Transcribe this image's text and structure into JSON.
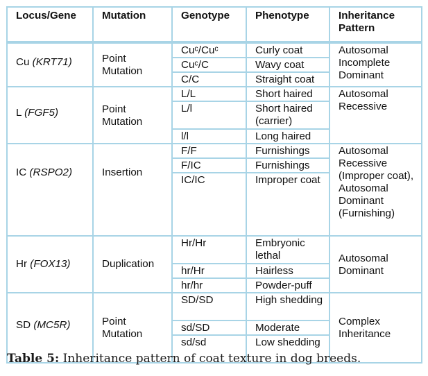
{
  "headers": {
    "locus": "Locus/Gene",
    "mutation": "Mutation",
    "genotype": "Genotype",
    "phenotype": "Phenotype",
    "inheritance": "Inheritance Pattern"
  },
  "groups": [
    {
      "locus": "Cu",
      "gene": "(KRT71)",
      "mutation": "Point Mutation",
      "inheritance": "Autosomal Incomplete Dominant",
      "rows": [
        {
          "genotype": "Cuᶜ/Cuᶜ",
          "phenotype": "Curly coat"
        },
        {
          "genotype": "Cuᶜ/C",
          "phenotype": "Wavy coat"
        },
        {
          "genotype": "C/C",
          "phenotype": "Straight coat"
        }
      ]
    },
    {
      "locus": "L",
      "gene": "(FGF5)",
      "mutation": "Point Mutation",
      "inheritance": "Autosomal Recessive",
      "rows": [
        {
          "genotype": "L/L",
          "phenotype": "Short haired"
        },
        {
          "genotype": "L/l",
          "phenotype": "Short haired (carrier)"
        },
        {
          "genotype": "l/l",
          "phenotype": "Long haired"
        }
      ]
    },
    {
      "locus": "IC",
      "gene": "(RSPO2)",
      "mutation": "Insertion",
      "inheritance": "Autosomal Recessive (Improper coat), Autosomal Dominant (Furnishing)",
      "rows": [
        {
          "genotype": "F/F",
          "phenotype": "Furnishings"
        },
        {
          "genotype": "F/IC",
          "phenotype": "Furnishings"
        },
        {
          "genotype": "IC/IC",
          "phenotype": "Improper coat"
        }
      ]
    },
    {
      "locus": "Hr",
      "gene": "(FOX13)",
      "mutation": "Duplication",
      "inheritance": "Autosomal Dominant",
      "rows": [
        {
          "genotype": "Hr/Hr",
          "phenotype": "Embryonic lethal"
        },
        {
          "genotype": "hr/Hr",
          "phenotype": "Hairless"
        },
        {
          "genotype": "hr/hr",
          "phenotype": "Powder-puff"
        }
      ]
    },
    {
      "locus": "SD",
      "gene": "(MC5R)",
      "mutation": "Point Mutation",
      "inheritance": "Complex Inheritance",
      "rows": [
        {
          "genotype": "SD/SD",
          "phenotype": "High shedding"
        },
        {
          "genotype": "sd/SD",
          "phenotype": "Moderate"
        },
        {
          "genotype": "sd/sd",
          "phenotype": "Low shedding"
        }
      ]
    }
  ],
  "caption": {
    "label": "Table 5:",
    "text": " Inheritance pattern of coat texture in dog breeds."
  },
  "colors": {
    "border": "#a8d4e6"
  }
}
